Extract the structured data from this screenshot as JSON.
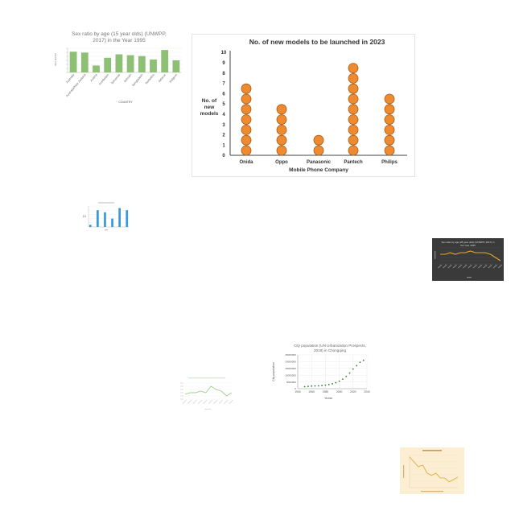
{
  "chart_data": [
    {
      "id": "sexratio",
      "type": "bar",
      "title": "Sex ratio by age (15 year olds) (UNWPP, 2017) in the Year 1995",
      "title_lines": [
        "Sex ratio by age (15 year olds) (UNWPP,",
        "2017) in the Year 1995"
      ],
      "xlabel": "COUNTRY",
      "ylabel": "SEX RATIO",
      "categories": [
        "Australia",
        "Australia/New Zealand",
        "Austria",
        "Azerbaijan",
        "Bahamas",
        "Bahrain",
        "Bangladesh",
        "Barbados",
        "Belarus",
        "Belgium"
      ],
      "values": [
        104.0,
        103.5,
        96.0,
        100.5,
        102.5,
        102.0,
        101.5,
        99.5,
        105.0,
        99.0
      ],
      "ylim": [
        92,
        106
      ],
      "color": "#8dbf75"
    },
    {
      "id": "phones",
      "type": "scatter",
      "title": "No. of new models to be launched in 2023",
      "xlabel": "Mobile Phone Company",
      "ylabel_lines": [
        "No. of",
        "new",
        "models"
      ],
      "categories": [
        "Onida",
        "Oppo",
        "Panasonic",
        "Pantech",
        "Philips"
      ],
      "values": [
        7,
        5,
        2,
        9,
        6
      ],
      "yticks": [
        "0",
        "1",
        "2",
        "3",
        "4",
        "5",
        "6",
        "7",
        "8",
        "9",
        "10"
      ],
      "ylim": [
        0,
        10
      ],
      "color": "#ee8a2f"
    },
    {
      "id": "bluebars",
      "type": "bar",
      "ytick": "10",
      "values": [
        1,
        0,
        8,
        0,
        7,
        0,
        4,
        0,
        9,
        0,
        8
      ],
      "ylim": [
        0,
        10
      ],
      "color": "#3a9ad9"
    },
    {
      "id": "darkline",
      "type": "line",
      "title_lines": [
        "Sex ratio by age (28 year olds) (UNWPP, 2017) in",
        "the Year 1835"
      ],
      "values": [
        6,
        6,
        7,
        6,
        7,
        7,
        8,
        7,
        7,
        7,
        6,
        4,
        2
      ],
      "ylim": [
        0,
        10
      ],
      "color": "#e2a92b"
    },
    {
      "id": "city",
      "type": "scatter",
      "title_lines": [
        "City population (UN Urbanization Prospects,",
        "2018) in Chongqing"
      ],
      "xlabel": "Years",
      "ylabel": "City population",
      "xticks": [
        "1940",
        "1960",
        "1980",
        "2000",
        "2020",
        "2040"
      ],
      "yticks": [
        "0",
        "5000000",
        "10000000",
        "15000000",
        "20000000",
        "25000000"
      ],
      "xlim": [
        1940,
        2040
      ],
      "ylim": [
        0,
        25000000
      ],
      "x": [
        1950,
        1955,
        1960,
        1965,
        1970,
        1975,
        1980,
        1985,
        1990,
        1995,
        2000,
        2005,
        2010,
        2015,
        2020,
        2025,
        2030,
        2035
      ],
      "values": [
        1500000,
        1700000,
        1900000,
        2000000,
        2100000,
        2300000,
        2600000,
        3000000,
        3600000,
        4400000,
        5500000,
        7000000,
        9000000,
        11500000,
        14500000,
        17000000,
        19500000,
        21000000
      ],
      "color": "#2e7d32"
    },
    {
      "id": "faintline",
      "type": "line",
      "values": [
        3,
        4,
        4,
        5,
        4,
        8,
        6,
        5,
        2,
        4
      ],
      "ylim": [
        0,
        10
      ],
      "color": "#9fcf8a"
    },
    {
      "id": "beige",
      "type": "line",
      "values": [
        9.5,
        8,
        6.5,
        7,
        4.5,
        3.8,
        4.5,
        3,
        3,
        1.8,
        2.5,
        3.3
      ],
      "ylim": [
        0,
        10
      ],
      "color": "#e8b250",
      "background": "#fbeed2"
    }
  ]
}
